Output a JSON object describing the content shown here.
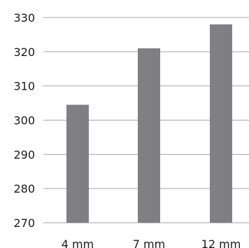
{
  "chart_data": {
    "type": "bar",
    "title": "",
    "xlabel": "",
    "ylabel": "",
    "categories": [
      "4 mm",
      "7 mm",
      "12 mm"
    ],
    "values": [
      304.5,
      321,
      328
    ],
    "ylim": [
      270,
      330
    ],
    "yticks": [
      270,
      280,
      290,
      300,
      310,
      320,
      330
    ],
    "grid": true,
    "bar_color": "#808083",
    "grid_color": "#a6a6a6"
  }
}
